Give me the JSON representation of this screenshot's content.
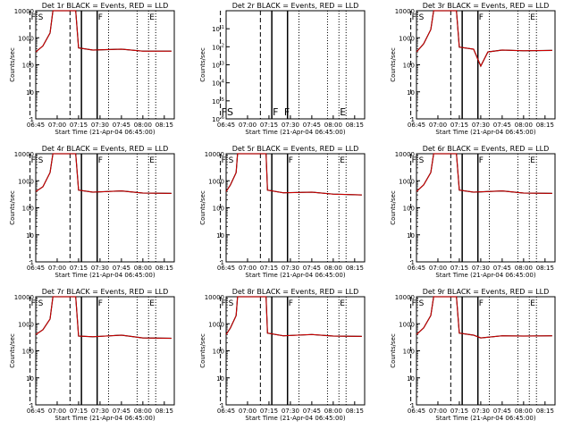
{
  "colors": {
    "events": "#000000",
    "lld": "#d40000",
    "background": "#ffffff"
  },
  "x_ticks": [
    "06:45",
    "07:00",
    "07:15",
    "07:30",
    "07:45",
    "08:00",
    "08:15"
  ],
  "y_ticks": [
    "1",
    "10",
    "100",
    "1000",
    "10000"
  ],
  "y_ticks_small": [
    "10^-1",
    "10^-2",
    "10^-3",
    "10^-4",
    "10^-5",
    "10^-6"
  ],
  "xlabel": "Start Time (21-Apr-04 06:45:00)",
  "ylabel": "Counts/sec",
  "chart_data": [
    {
      "type": "line",
      "title": "Det 1r BLACK = Events, RED = LLD",
      "xlabel": "Start Time (21-Apr-04 06:45:00)",
      "ylabel": "Counts/sec",
      "xlim": [
        "06:45",
        "08:22"
      ],
      "ylim": [
        1,
        10000
      ],
      "yscale": "log",
      "markers": [
        "F",
        "S",
        "F",
        "E"
      ],
      "series": [
        {
          "name": "Events",
          "x": [
            "06:45",
            "06:50",
            "06:55",
            "06:57",
            "07:13",
            "07:15",
            "07:25",
            "07:45",
            "08:00",
            "08:20"
          ],
          "values": [
            300,
            500,
            1500,
            10000,
            10000,
            420,
            350,
            380,
            320,
            320
          ]
        },
        {
          "name": "LLD",
          "x": [
            "06:45",
            "06:50",
            "06:55",
            "06:57",
            "07:13",
            "07:15",
            "07:25",
            "07:45",
            "08:00",
            "08:20"
          ],
          "values": [
            300,
            500,
            1500,
            10000,
            10000,
            420,
            350,
            380,
            320,
            320
          ]
        }
      ]
    },
    {
      "type": "line",
      "title": "Det 2r BLACK = Events, RED = LLD",
      "xlabel": "Start Time (21-Apr-04 06:45:00)",
      "ylabel": "Counts/sec",
      "xlim": [
        "06:45",
        "08:22"
      ],
      "ylim": [
        1e-06,
        1
      ],
      "yscale": "log",
      "markers": [
        "F",
        "S",
        "F",
        "F",
        "E"
      ],
      "series": []
    },
    {
      "type": "line",
      "title": "Det 3r BLACK = Events, RED = LLD",
      "xlabel": "Start Time (21-Apr-04 06:45:00)",
      "ylabel": "Counts/sec",
      "xlim": [
        "06:45",
        "08:22"
      ],
      "ylim": [
        1,
        10000
      ],
      "yscale": "log",
      "markers": [
        "F",
        "S",
        "F",
        "E"
      ],
      "series": [
        {
          "name": "Events",
          "x": [
            "06:45",
            "06:50",
            "06:55",
            "06:57",
            "07:13",
            "07:15",
            "07:25",
            "07:30",
            "07:35",
            "07:45",
            "08:00",
            "08:20"
          ],
          "values": [
            300,
            600,
            2000,
            10000,
            10000,
            450,
            380,
            90,
            300,
            350,
            330,
            340
          ]
        },
        {
          "name": "LLD",
          "x": [
            "06:45",
            "06:50",
            "06:55",
            "06:57",
            "07:13",
            "07:15",
            "07:25",
            "07:30",
            "07:35",
            "07:45",
            "08:00",
            "08:20"
          ],
          "values": [
            300,
            600,
            2000,
            10000,
            10000,
            450,
            380,
            90,
            300,
            350,
            330,
            340
          ]
        }
      ]
    },
    {
      "type": "line",
      "title": "Det 4r BLACK = Events, RED = LLD",
      "xlabel": "Start Time (21-Apr-04 06:45:00)",
      "ylabel": "Counts/sec",
      "xlim": [
        "06:45",
        "08:22"
      ],
      "ylim": [
        1,
        10000
      ],
      "yscale": "log",
      "markers": [
        "F",
        "S",
        "F",
        "E"
      ],
      "series": [
        {
          "name": "Events",
          "x": [
            "06:45",
            "06:50",
            "06:55",
            "06:57",
            "07:13",
            "07:15",
            "07:25",
            "07:45",
            "08:00",
            "08:20"
          ],
          "values": [
            400,
            600,
            2000,
            10000,
            10000,
            450,
            380,
            420,
            350,
            340
          ]
        },
        {
          "name": "LLD",
          "x": [
            "06:45",
            "06:50",
            "06:55",
            "06:57",
            "07:13",
            "07:15",
            "07:25",
            "07:45",
            "08:00",
            "08:20"
          ],
          "values": [
            400,
            600,
            2000,
            10000,
            10000,
            450,
            380,
            420,
            350,
            340
          ]
        }
      ]
    },
    {
      "type": "line",
      "title": "Det 5r BLACK = Events, RED = LLD",
      "xlabel": "Start Time (21-Apr-04 06:45:00)",
      "ylabel": "Counts/sec",
      "xlim": [
        "06:45",
        "08:22"
      ],
      "ylim": [
        1,
        10000
      ],
      "yscale": "log",
      "markers": [
        "F",
        "S",
        "F",
        "E"
      ],
      "series": [
        {
          "name": "Events",
          "x": [
            "06:45",
            "06:48",
            "06:52",
            "06:53",
            "07:13",
            "07:14",
            "07:25",
            "07:45",
            "08:00",
            "08:20"
          ],
          "values": [
            400,
            700,
            2000,
            10000,
            10000,
            450,
            360,
            380,
            320,
            300
          ]
        },
        {
          "name": "LLD",
          "x": [
            "06:45",
            "06:48",
            "06:52",
            "06:53",
            "07:13",
            "07:14",
            "07:25",
            "07:45",
            "08:00",
            "08:20"
          ],
          "values": [
            400,
            700,
            2000,
            10000,
            10000,
            450,
            360,
            380,
            320,
            300
          ]
        }
      ]
    },
    {
      "type": "line",
      "title": "Det 6r BLACK = Events, RED = LLD",
      "xlabel": "Start Time (21-Apr-04 06:45:00)",
      "ylabel": "Counts/sec",
      "xlim": [
        "06:45",
        "08:22"
      ],
      "ylim": [
        1,
        10000
      ],
      "yscale": "log",
      "markers": [
        "F",
        "S",
        "F",
        "E"
      ],
      "series": [
        {
          "name": "Events",
          "x": [
            "06:45",
            "06:50",
            "06:55",
            "06:57",
            "07:13",
            "07:15",
            "07:25",
            "07:45",
            "08:00",
            "08:20"
          ],
          "values": [
            400,
            700,
            2000,
            10000,
            10000,
            450,
            380,
            420,
            350,
            340
          ]
        },
        {
          "name": "LLD",
          "x": [
            "06:45",
            "06:50",
            "06:55",
            "06:57",
            "07:13",
            "07:15",
            "07:25",
            "07:45",
            "08:00",
            "08:20"
          ],
          "values": [
            400,
            700,
            2000,
            10000,
            10000,
            450,
            380,
            420,
            350,
            340
          ]
        }
      ]
    },
    {
      "type": "line",
      "title": "Det 7r BLACK = Events, RED = LLD",
      "xlabel": "Start Time (21-Apr-04 06:45:00)",
      "ylabel": "Counts/sec",
      "xlim": [
        "06:45",
        "08:22"
      ],
      "ylim": [
        1,
        10000
      ],
      "yscale": "log",
      "markers": [
        "F",
        "S",
        "F",
        "E"
      ],
      "series": [
        {
          "name": "Events",
          "x": [
            "06:45",
            "06:50",
            "06:55",
            "06:57",
            "07:13",
            "07:15",
            "07:25",
            "07:45",
            "08:00",
            "08:20"
          ],
          "values": [
            400,
            600,
            1500,
            10000,
            10000,
            350,
            330,
            380,
            300,
            290
          ]
        },
        {
          "name": "LLD",
          "x": [
            "06:45",
            "06:50",
            "06:55",
            "06:57",
            "07:13",
            "07:15",
            "07:25",
            "07:45",
            "08:00",
            "08:20"
          ],
          "values": [
            400,
            600,
            1500,
            10000,
            10000,
            350,
            330,
            380,
            300,
            290
          ]
        }
      ]
    },
    {
      "type": "line",
      "title": "Det 8r BLACK = Events, RED = LLD",
      "xlabel": "Start Time (21-Apr-04 06:45:00)",
      "ylabel": "Counts/sec",
      "xlim": [
        "06:45",
        "08:22"
      ],
      "ylim": [
        1,
        10000
      ],
      "yscale": "log",
      "markers": [
        "F",
        "S",
        "F",
        "E"
      ],
      "series": [
        {
          "name": "Events",
          "x": [
            "06:45",
            "06:48",
            "06:52",
            "06:53",
            "07:13",
            "07:14",
            "07:25",
            "07:45",
            "08:00",
            "08:20"
          ],
          "values": [
            400,
            700,
            2000,
            10000,
            10000,
            450,
            360,
            400,
            350,
            340
          ]
        },
        {
          "name": "LLD",
          "x": [
            "06:45",
            "06:48",
            "06:52",
            "06:53",
            "07:13",
            "07:14",
            "07:25",
            "07:45",
            "08:00",
            "08:20"
          ],
          "values": [
            400,
            700,
            2000,
            10000,
            10000,
            450,
            360,
            400,
            350,
            340
          ]
        }
      ]
    },
    {
      "type": "line",
      "title": "Det 9r BLACK = Events, RED = LLD",
      "xlabel": "Start Time (21-Apr-04 06:45:00)",
      "ylabel": "Counts/sec",
      "xlim": [
        "06:45",
        "08:22"
      ],
      "ylim": [
        1,
        10000
      ],
      "yscale": "log",
      "markers": [
        "F",
        "S",
        "F",
        "E"
      ],
      "series": [
        {
          "name": "Events",
          "x": [
            "06:45",
            "06:50",
            "06:55",
            "06:57",
            "07:13",
            "07:15",
            "07:25",
            "07:30",
            "07:45",
            "08:00",
            "08:20"
          ],
          "values": [
            400,
            700,
            2000,
            10000,
            10000,
            450,
            380,
            300,
            360,
            350,
            360
          ]
        },
        {
          "name": "LLD",
          "x": [
            "06:45",
            "06:50",
            "06:55",
            "06:57",
            "07:13",
            "07:15",
            "07:25",
            "07:30",
            "07:45",
            "08:00",
            "08:20"
          ],
          "values": [
            400,
            700,
            2000,
            10000,
            10000,
            450,
            380,
            300,
            360,
            350,
            360
          ]
        }
      ]
    }
  ]
}
